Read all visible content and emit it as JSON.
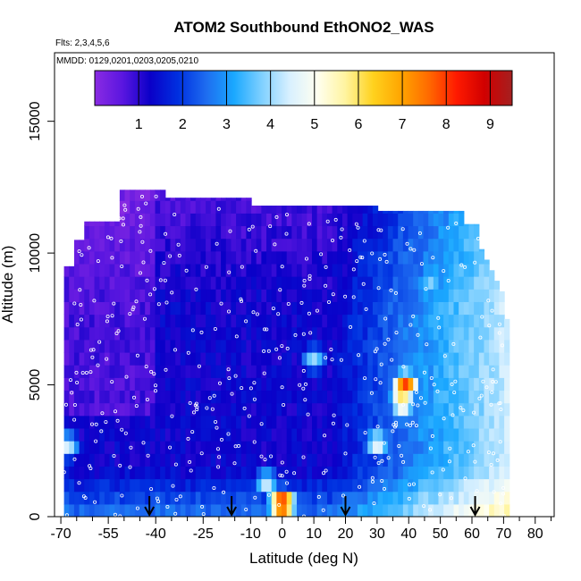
{
  "chart_data": {
    "type": "heatmap",
    "title": "ATOM2 Southbound EthONO2_WAS",
    "flights_label": "Flts: 2,3,4,5,6",
    "dates_label": "MMDD: 0129,0201,0203,0205,0210",
    "xlabel": "Latitude (deg N)",
    "ylabel": "Altitude (m)",
    "xlim": [
      -72,
      86
    ],
    "ylim": [
      0,
      17600
    ],
    "x_tick_labels": [
      "-70",
      "-55",
      "-40",
      "-25",
      "-10",
      "0",
      "10",
      "20",
      "30",
      "40",
      "50",
      "60",
      "70",
      "80"
    ],
    "x_tick_values": [
      -70,
      -55,
      -40,
      -25,
      -10,
      0,
      10,
      20,
      30,
      40,
      50,
      60,
      70,
      80
    ],
    "x_minor_ticks": [
      -65,
      -60,
      -50,
      -45,
      -35,
      -30,
      -20,
      -15,
      -5,
      5,
      15,
      25,
      35,
      45,
      55,
      65,
      75,
      85
    ],
    "y_tick_labels": [
      "0",
      "5000",
      "10000",
      "15000"
    ],
    "y_tick_values": [
      0,
      5000,
      10000,
      15000
    ],
    "colorbar": {
      "min": 0,
      "max": 9.5,
      "tick_labels": [
        "1",
        "2",
        "3",
        "4",
        "5",
        "6",
        "7",
        "8",
        "9"
      ],
      "tick_values": [
        1,
        2,
        3,
        4,
        5,
        6,
        7,
        8,
        9
      ],
      "colors": [
        "#8a2be2",
        "#5a16e0",
        "#0a00c8",
        "#0030e0",
        "#1e6cf0",
        "#1aa8ff",
        "#7fd0ff",
        "#d8f0ff",
        "#fffff0",
        "#fff4a0",
        "#ffd21e",
        "#ffa500",
        "#ff6a00",
        "#ff1a00",
        "#d10000",
        "#a52020"
      ]
    },
    "flight_arrow_latitudes": [
      -42,
      -16,
      20,
      61
    ],
    "hotspots": [
      {
        "lat": 0,
        "alt": 500,
        "value": 9.0
      },
      {
        "lat": 39,
        "alt": 5000,
        "value": 8.0
      },
      {
        "lat": 38,
        "alt": 4400,
        "value": 6.5
      },
      {
        "lat": 30,
        "alt": 2800,
        "value": 5.0
      },
      {
        "lat": -68,
        "alt": 2700,
        "value": 4.5
      },
      {
        "lat": -5,
        "alt": 1300,
        "value": 4.5
      },
      {
        "lat": 10,
        "alt": 6000,
        "value": 4.0
      },
      {
        "lat": 47,
        "alt": 9000,
        "value": 4.0
      }
    ],
    "grid": false,
    "legend": "colorbar top"
  }
}
